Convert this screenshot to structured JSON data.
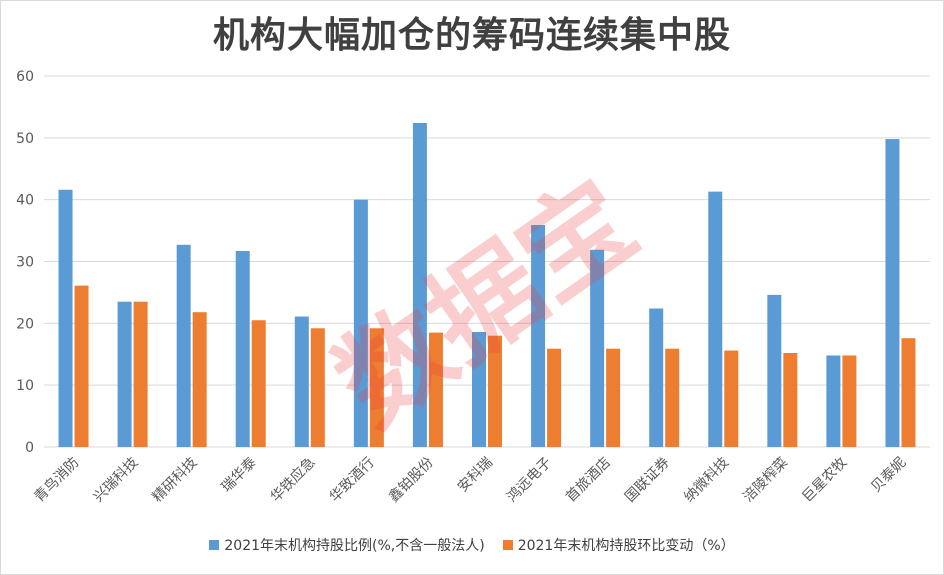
{
  "chart_data": {
    "type": "bar",
    "title": "机构大幅加仓的筹码连续集中股",
    "categories": [
      "青鸟消防",
      "兴瑞科技",
      "精研科技",
      "瑞华泰",
      "华铁应急",
      "华致酒行",
      "鑫铂股份",
      "安科瑞",
      "鸿远电子",
      "首旅酒店",
      "国联证券",
      "纳微科技",
      "涪陵榨菜",
      "巨星农牧",
      "贝泰妮"
    ],
    "series": [
      {
        "name": "2021年末机构持股比例(%,不含一般法人)",
        "color": "#5b9bd5",
        "values": [
          41.6,
          23.5,
          32.7,
          31.7,
          21.1,
          40.0,
          52.4,
          18.6,
          35.9,
          31.9,
          22.4,
          41.3,
          24.6,
          14.8,
          49.8
        ]
      },
      {
        "name": "2021年末机构持股环比变动（%）",
        "color": "#ed7d31",
        "values": [
          26.1,
          23.5,
          21.8,
          20.5,
          19.2,
          19.2,
          18.5,
          18.0,
          15.9,
          15.9,
          15.9,
          15.6,
          15.2,
          14.8,
          17.6
        ]
      }
    ],
    "ylim": [
      0,
      60
    ],
    "yticks": [
      0,
      10,
      20,
      30,
      40,
      50,
      60
    ],
    "grid": true,
    "legend_position": "bottom"
  },
  "watermark": "数据宝"
}
